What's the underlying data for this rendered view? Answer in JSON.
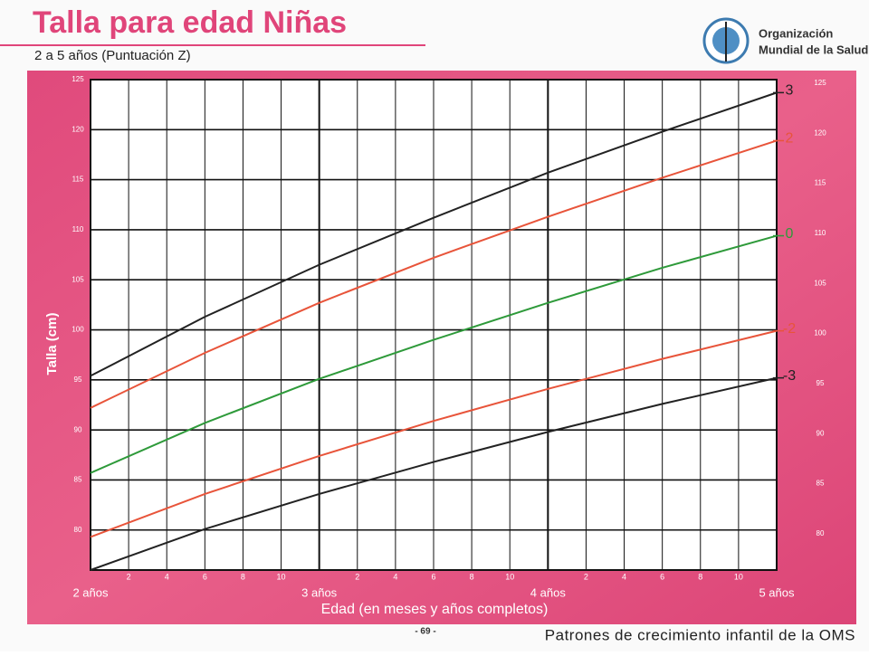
{
  "header": {
    "title": "Talla para edad Niñas",
    "subtitle": "2 a 5 años (Puntuación Z)",
    "org_line1": "Organización",
    "org_line2": "Mundial de la Salud"
  },
  "chart_data": {
    "type": "line",
    "ylabel": "Talla (cm)",
    "xlabel": "Edad (en meses y años completos)",
    "x": [
      24,
      30,
      36,
      42,
      48,
      54,
      60
    ],
    "series": [
      {
        "name": "3",
        "color": "#222222",
        "values": [
          95.4,
          101.3,
          106.5,
          111.2,
          115.7,
          119.8,
          123.7
        ]
      },
      {
        "name": "2",
        "color": "#e8543a",
        "values": [
          92.2,
          97.7,
          102.7,
          107.2,
          111.3,
          115.2,
          118.9
        ]
      },
      {
        "name": "0",
        "color": "#2e9a3a",
        "values": [
          85.7,
          90.7,
          95.1,
          99.0,
          102.7,
          106.2,
          109.4
        ]
      },
      {
        "name": "-2",
        "color": "#e8543a",
        "values": [
          79.3,
          83.6,
          87.4,
          90.9,
          94.1,
          97.1,
          99.9
        ]
      },
      {
        "name": "-3",
        "color": "#222222",
        "values": [
          76.0,
          80.1,
          83.6,
          86.8,
          89.8,
          92.6,
          95.2
        ]
      }
    ],
    "xlim": [
      24,
      60
    ],
    "ylim": [
      76,
      125
    ],
    "xticks": [
      {
        "value": 24,
        "label": "2 años"
      },
      {
        "value": 26,
        "label": "2"
      },
      {
        "value": 28,
        "label": "4"
      },
      {
        "value": 30,
        "label": "6"
      },
      {
        "value": 32,
        "label": "8"
      },
      {
        "value": 34,
        "label": "10"
      },
      {
        "value": 36,
        "label": "3 años"
      },
      {
        "value": 38,
        "label": "2"
      },
      {
        "value": 40,
        "label": "4"
      },
      {
        "value": 42,
        "label": "6"
      },
      {
        "value": 44,
        "label": "8"
      },
      {
        "value": 46,
        "label": "10"
      },
      {
        "value": 48,
        "label": "4 años"
      },
      {
        "value": 50,
        "label": "2"
      },
      {
        "value": 52,
        "label": "4"
      },
      {
        "value": 54,
        "label": "6"
      },
      {
        "value": 56,
        "label": "8"
      },
      {
        "value": 58,
        "label": "10"
      },
      {
        "value": 60,
        "label": "5 años"
      }
    ],
    "yticks": [
      80,
      85,
      90,
      95,
      100,
      105,
      110,
      115,
      120,
      125
    ],
    "grid": true
  },
  "footer": {
    "page": "- 69 -",
    "text": "Patrones de crecimiento infantil de la OMS"
  }
}
